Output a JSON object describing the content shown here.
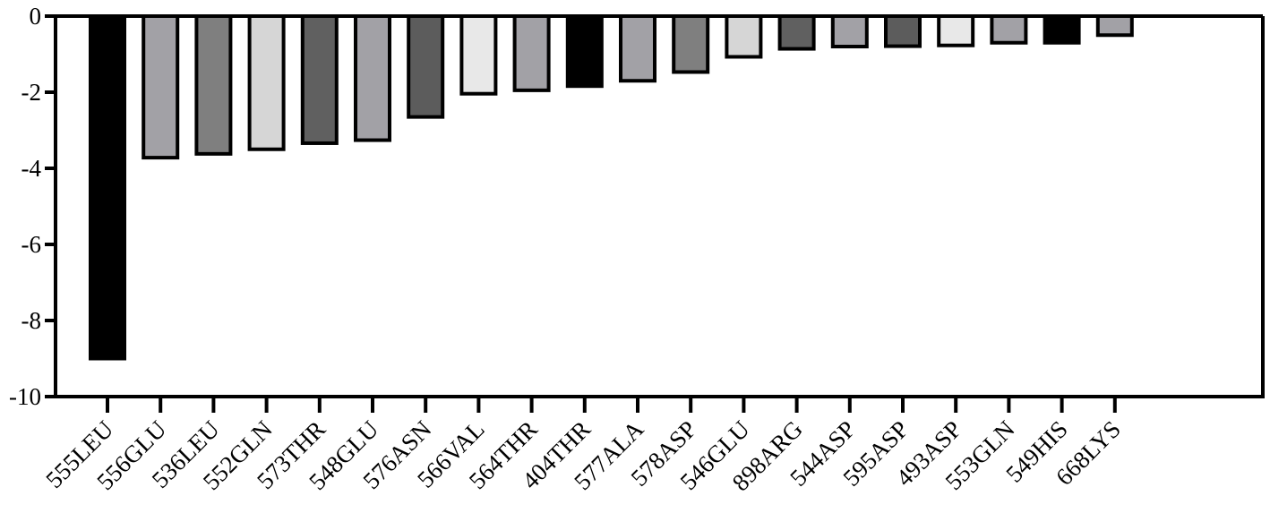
{
  "chart_data": {
    "type": "bar",
    "title": "",
    "xlabel": "",
    "ylabel": "",
    "ylim": [
      -10,
      0
    ],
    "yticks": [
      0,
      -2,
      -4,
      -6,
      -8,
      -10
    ],
    "grid": false,
    "categories": [
      "555LEU",
      "556GLU",
      "536LEU",
      "552GLN",
      "573THR",
      "548GLU",
      "576ASN",
      "566VAL",
      "564THR",
      "404THR",
      "577ALA",
      "578ASP",
      "546GLU",
      "898ARG",
      "544ASP",
      "595ASP",
      "493ASP",
      "553GLN",
      "549HIS",
      "668LYS"
    ],
    "values": [
      -9.0,
      -3.72,
      -3.62,
      -3.5,
      -3.34,
      -3.26,
      -2.65,
      -2.04,
      -1.95,
      -1.84,
      -1.7,
      -1.47,
      -1.07,
      -0.86,
      -0.8,
      -0.79,
      -0.77,
      -0.7,
      -0.7,
      -0.5
    ],
    "colors": [
      "#000000",
      "#a2a1a6",
      "#7f7f7f",
      "#d6d6d6",
      "#606060",
      "#a2a1a6",
      "#5c5c5c",
      "#e8e8e8",
      "#a2a1a6",
      "#000000",
      "#a2a1a6",
      "#7f7f7f",
      "#d6d6d6",
      "#606060",
      "#a2a1a6",
      "#5c5c5c",
      "#e8e8e8",
      "#a2a1a6",
      "#000000",
      "#a2a1a6"
    ]
  }
}
